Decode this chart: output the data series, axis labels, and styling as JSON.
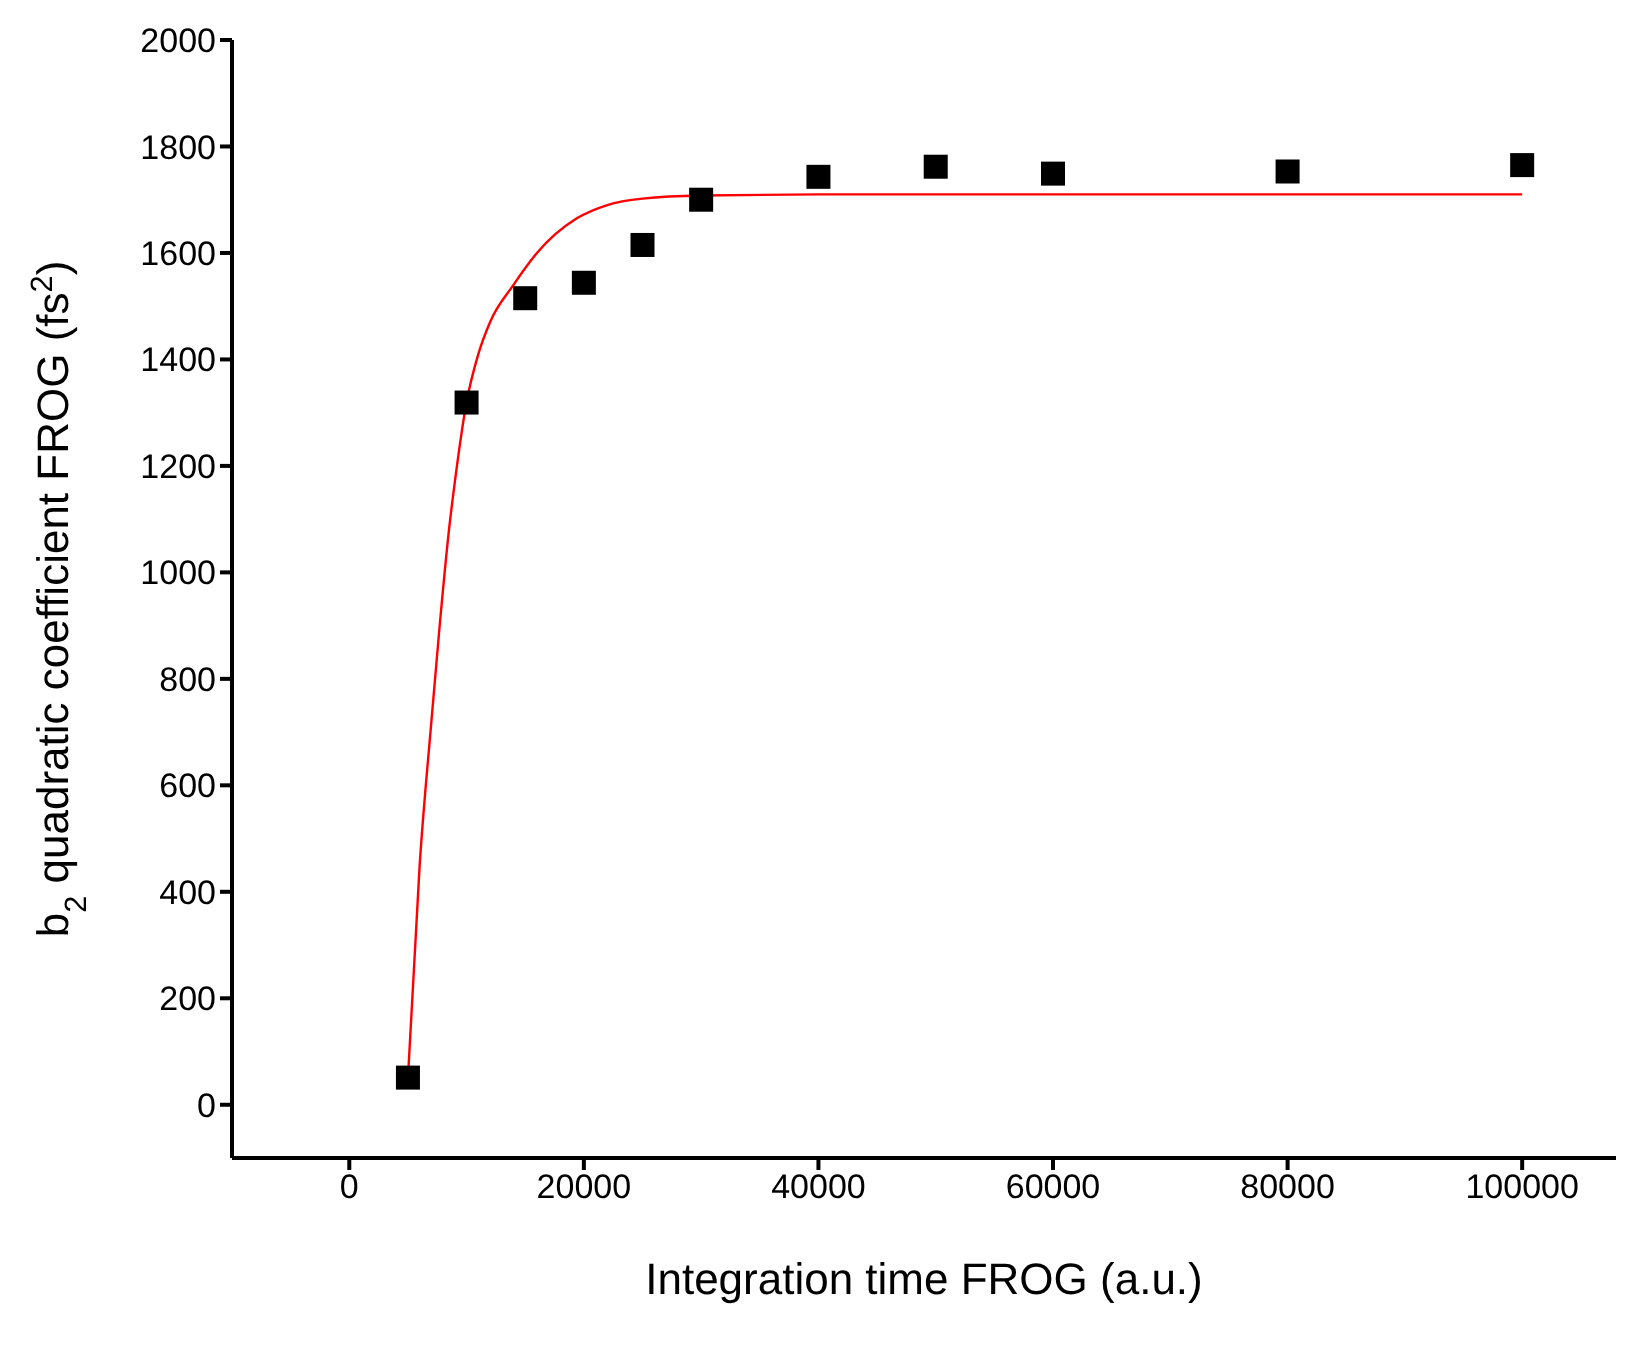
{
  "chart_data": {
    "type": "scatter",
    "xlabel": "Integration time FROG (a.u.)",
    "ylabel": "b$_{2}$ quadratic coefficient FROG (fs$^{2}$)",
    "xlim": [
      -10000,
      108000
    ],
    "xticks": [
      0,
      20000,
      40000,
      60000,
      80000,
      100000
    ],
    "ylim": [
      -100,
      2000
    ],
    "yticks": [
      0,
      200,
      400,
      600,
      800,
      1000,
      1200,
      1400,
      1600,
      1800,
      2000
    ],
    "grid": false,
    "series": [
      {
        "color": "#000000",
        "marker": "square",
        "x": [
          5000,
          10000,
          15000,
          20000,
          25000,
          30000,
          40000,
          50000,
          60000,
          80000,
          100000
        ],
        "values": [
          51,
          1319,
          1515,
          1544,
          1615,
          1700,
          1743,
          1762,
          1749,
          1753,
          1765
        ]
      },
      {
        "type": "line",
        "color": "#ff0000",
        "marker": "none",
        "x": [
          5000,
          6000,
          7000,
          7690,
          8500,
          9000,
          10000,
          11000,
          12000,
          14000,
          16000,
          19400,
          22000,
          25000,
          30000,
          40000,
          100000
        ],
        "values": [
          50,
          450,
          720,
          896,
          1080,
          1170,
          1320,
          1410,
          1470,
          1540,
          1600,
          1665,
          1690,
          1702,
          1708,
          1710,
          1710
        ]
      }
    ]
  }
}
